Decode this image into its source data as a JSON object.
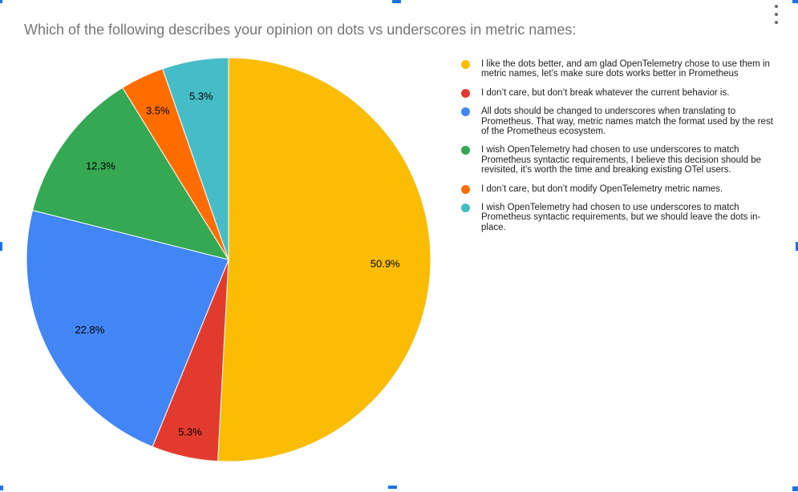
{
  "page": {
    "title": "Which of the following describes your opinion on dots vs underscores in metric names:",
    "menu_icon": "kebab-vertical-icon",
    "selection_handle_color": "#1a73e8",
    "title_color": "#757575"
  },
  "chart_data": {
    "type": "pie",
    "title": "Which of the following describes your opinion on dots vs underscores in metric names:",
    "legend_position": "right",
    "start_angle_deg": 0,
    "direction": "clockwise",
    "slices": [
      {
        "label": "I like the dots better, and am glad OpenTelemetry chose to use them in metric names, let’s make sure dots works better in Prometheus",
        "value": 50.9,
        "display": "50.9%",
        "color": "#FBBC04"
      },
      {
        "label": "I don’t care, but don’t break whatever the current behavior is.",
        "value": 5.3,
        "display": "5.3%",
        "color": "#E23B2E"
      },
      {
        "label": "All dots should be changed to underscores when translating to Prometheus. That way, metric names match the format used by the rest of the Prometheus ecosystem.",
        "value": 22.8,
        "display": "22.8%",
        "color": "#4285F4"
      },
      {
        "label": "I wish OpenTelemetry had chosen to use underscores to match Prometheus syntactic requirements, I believe this decision should be revisited, it’s worth the time and breaking existing OTel users.",
        "value": 12.3,
        "display": "12.3%",
        "color": "#34A853"
      },
      {
        "label": "I don’t care, but don’t modify OpenTelemetry metric names.",
        "value": 3.5,
        "display": "3.5%",
        "color": "#FF6D01"
      },
      {
        "label": "I wish OpenTelemetry had chosen to use underscores to match Prometheus syntactic requirements, but we should leave the dots in-place.",
        "value": 5.3,
        "display": "5.3%",
        "color": "#46BDC6"
      }
    ]
  }
}
